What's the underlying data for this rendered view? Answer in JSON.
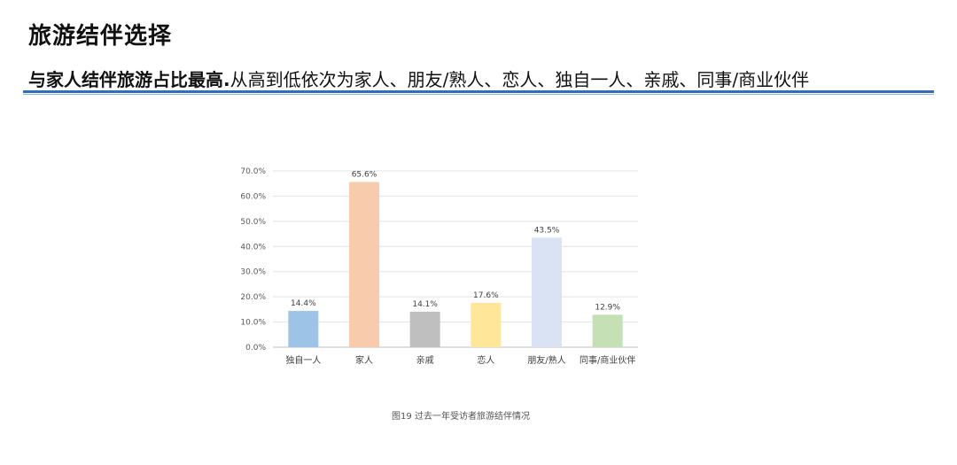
{
  "header": {
    "title": "旅游结伴选择",
    "subtitle_bold": "与家人结伴旅游占比最高.",
    "subtitle_rest": "从高到低依次为家人、朋友/熟人、恋人、独自一人、亲戚、同事/商业伙伴"
  },
  "caption": "图19 过去一年受访者旅游结伴情况",
  "chart_data": {
    "type": "bar",
    "categories": [
      "独自一人",
      "家人",
      "亲戚",
      "恋人",
      "朋友/熟人",
      "同事/商业伙伴"
    ],
    "values": [
      14.4,
      65.6,
      14.1,
      17.6,
      43.5,
      12.9
    ],
    "value_labels": [
      "14.4%",
      "65.6%",
      "14.1%",
      "17.6%",
      "43.5%",
      "12.9%"
    ],
    "colors": [
      "#9dc3e6",
      "#f8cbad",
      "#bfbfbf",
      "#ffe699",
      "#dae3f3",
      "#c5e0b4"
    ],
    "yticks": [
      "0.0%",
      "10.0%",
      "20.0%",
      "30.0%",
      "40.0%",
      "50.0%",
      "60.0%",
      "70.0%"
    ],
    "ylim": [
      0,
      70
    ],
    "grid": true,
    "xlabel": "",
    "ylabel": ""
  }
}
